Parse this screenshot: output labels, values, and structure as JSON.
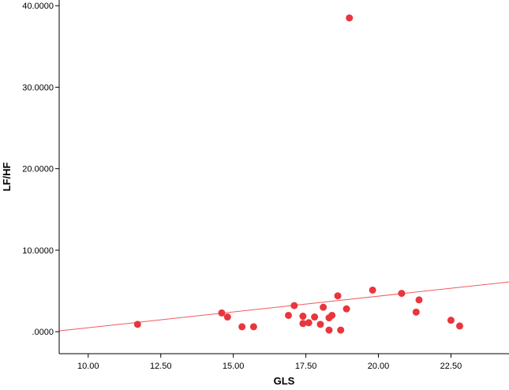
{
  "chart_data": {
    "type": "scatter",
    "title": "",
    "xlabel": "GLS",
    "ylabel": "LF/HF",
    "xlim": [
      9.0,
      24.5
    ],
    "ylim": [
      -2.7,
      40.7
    ],
    "x_ticks": [
      10.0,
      12.5,
      15.0,
      17.5,
      20.0,
      22.5
    ],
    "x_tick_labels": [
      "10.00",
      "12.50",
      "15.00",
      "17.50",
      "20.00",
      "22.50"
    ],
    "y_ticks": [
      0,
      10,
      20,
      30,
      40
    ],
    "y_tick_labels": [
      ".0000",
      "10.0000",
      "20.0000",
      "30.0000",
      "40.0000"
    ],
    "grid": false,
    "legend": "none",
    "colors": {
      "background": "#ffffff",
      "plot_area": "#ffffff",
      "axis": "#000000",
      "marker": "#e8363d",
      "fit_line": "#f05a5a"
    },
    "series": [
      {
        "points": [
          {
            "x": 11.7,
            "y": 0.9
          },
          {
            "x": 14.6,
            "y": 2.3
          },
          {
            "x": 14.8,
            "y": 1.8
          },
          {
            "x": 15.3,
            "y": 0.6
          },
          {
            "x": 15.7,
            "y": 0.6
          },
          {
            "x": 16.9,
            "y": 2.0
          },
          {
            "x": 17.1,
            "y": 3.2
          },
          {
            "x": 17.4,
            "y": 1.9
          },
          {
            "x": 17.4,
            "y": 1.0
          },
          {
            "x": 17.6,
            "y": 1.1
          },
          {
            "x": 17.8,
            "y": 1.8
          },
          {
            "x": 18.0,
            "y": 0.9
          },
          {
            "x": 18.1,
            "y": 3.0
          },
          {
            "x": 18.3,
            "y": 0.2
          },
          {
            "x": 18.3,
            "y": 1.7
          },
          {
            "x": 18.4,
            "y": 2.0
          },
          {
            "x": 18.6,
            "y": 4.4
          },
          {
            "x": 18.7,
            "y": 0.2
          },
          {
            "x": 18.9,
            "y": 2.8
          },
          {
            "x": 19.0,
            "y": 38.5
          },
          {
            "x": 19.8,
            "y": 5.1
          },
          {
            "x": 20.8,
            "y": 4.7
          },
          {
            "x": 21.3,
            "y": 2.4
          },
          {
            "x": 21.4,
            "y": 3.9
          },
          {
            "x": 22.5,
            "y": 1.4
          },
          {
            "x": 22.8,
            "y": 0.7
          }
        ]
      }
    ],
    "fit_line": {
      "x1": 9.0,
      "y1": 0.1,
      "x2": 24.5,
      "y2": 6.1
    }
  }
}
